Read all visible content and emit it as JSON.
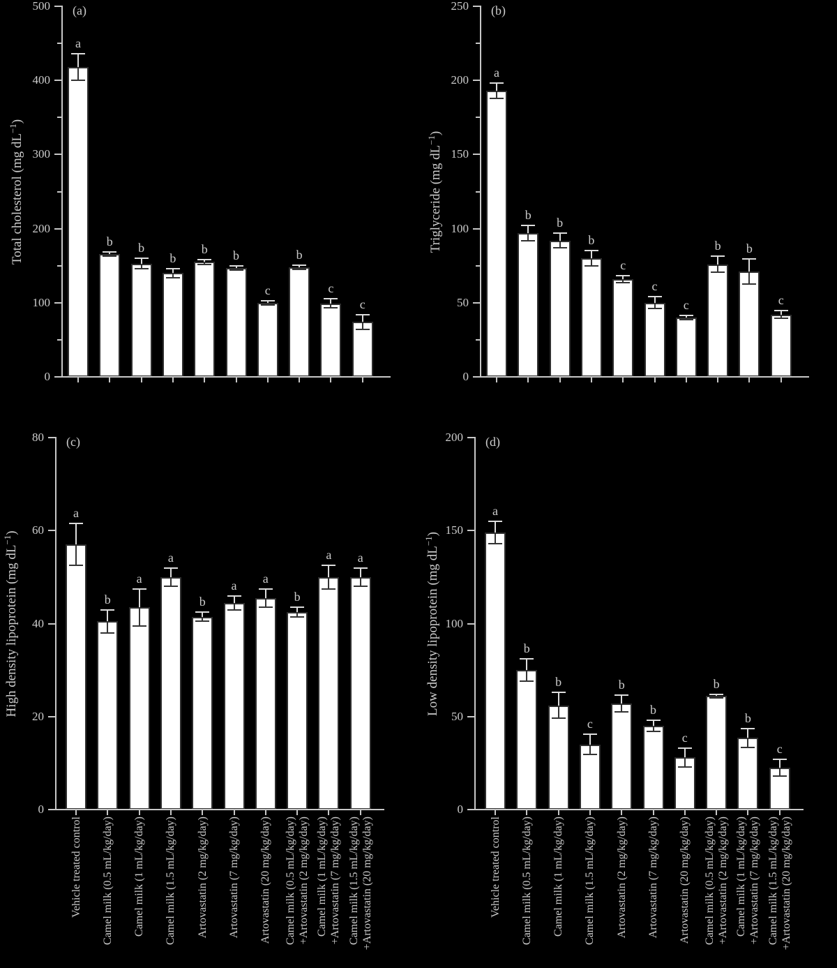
{
  "figure": {
    "background": "#000000",
    "axis_color": "#c8c8c8",
    "text_color": "#cccccc",
    "bar_fill": "#ffffff",
    "bar_border": "#2e2e2e",
    "error_bar_light": "#dddddd",
    "error_bar_dark": "#333333"
  },
  "chart_data": {
    "type": "bar",
    "layout": "2x2-panels, shared x categories, error bars with significance letters",
    "legend": "none",
    "grid": "off",
    "categories": [
      [
        "Vehicle treated control"
      ],
      [
        "Camel milk (0.5 mL/kg/day)"
      ],
      [
        "Camel milk (1 mL/kg/day)"
      ],
      [
        "Camel milk (1.5 mL/kg/day)"
      ],
      [
        "Artovastatin (2 mg/kg/day)"
      ],
      [
        "Artovastatin (7 mg/kg/day)"
      ],
      [
        "Artovastatin (20 mg/kg/day)"
      ],
      [
        "Camel milk (0.5 mL/kg/day)",
        "+Artovastatin (2 mg/kg/day)"
      ],
      [
        "Camel milk (1 mL/kg/day)",
        "+Artovastatin (7 mg/kg/day)"
      ],
      [
        "Camel milk (1.5 mL/kg/day)",
        "+Artovastatin (20 mg/kg/day)"
      ]
    ],
    "panels": [
      {
        "panel": "(a)",
        "ylabel_prefix": "Total cholesterol (mg dL",
        "ylabel_sup": "−1",
        "ylabel_suffix": ")",
        "ylim": [
          0,
          500
        ],
        "ytick_step": 100,
        "minor_ticks": true,
        "yticks": [
          0,
          100,
          200,
          300,
          400,
          500
        ],
        "values": [
          418,
          166,
          153,
          140,
          155,
          147,
          100,
          148,
          99,
          74
        ],
        "errors": [
          18,
          3,
          7,
          6,
          3,
          3,
          3,
          3,
          6,
          10
        ],
        "sig_letters": [
          "a",
          "b",
          "b",
          "b",
          "b",
          "b",
          "c",
          "b",
          "c",
          "c"
        ]
      },
      {
        "panel": "(b)",
        "ylabel_prefix": "Triglyceride (mg dL",
        "ylabel_sup": "−1",
        "ylabel_suffix": ")",
        "ylim": [
          0,
          250
        ],
        "ytick_step": 50,
        "minor_ticks": true,
        "yticks": [
          0,
          50,
          100,
          150,
          200,
          250
        ],
        "values": [
          193,
          97,
          92,
          80,
          66,
          50,
          40,
          76,
          71,
          42
        ],
        "errors": [
          5,
          5,
          5,
          5,
          2.5,
          4,
          1.5,
          5.5,
          8.5,
          2.5
        ],
        "sig_letters": [
          "a",
          "b",
          "b",
          "b",
          "c",
          "c",
          "c",
          "b",
          "b",
          "c"
        ]
      },
      {
        "panel": "(c)",
        "ylabel_prefix": "High density lipoprotein (mg dL",
        "ylabel_sup": "−1",
        "ylabel_suffix": ")",
        "ylim": [
          0,
          80
        ],
        "ytick_step": 20,
        "minor_ticks": false,
        "yticks": [
          0,
          20,
          40,
          60,
          80
        ],
        "values": [
          57,
          40.5,
          43.5,
          50,
          41.5,
          44.5,
          45.5,
          42.5,
          50,
          50
        ],
        "errors": [
          4.5,
          2.5,
          4,
          2,
          1,
          1.5,
          2,
          1,
          2.5,
          2
        ],
        "sig_letters": [
          "a",
          "b",
          "a",
          "a",
          "b",
          "a",
          "a",
          "b",
          "a",
          "a"
        ]
      },
      {
        "panel": "(d)",
        "ylabel_prefix": "Low density lipoprotein (mg dL",
        "ylabel_sup": "−1",
        "ylabel_suffix": ")",
        "ylim": [
          0,
          200
        ],
        "ytick_step": 50,
        "minor_ticks": false,
        "yticks": [
          0,
          50,
          100,
          150,
          200
        ],
        "values": [
          149,
          75,
          56,
          35,
          57,
          45,
          28,
          61,
          38.5,
          22.5
        ],
        "errors": [
          6,
          6,
          7,
          5.5,
          4.5,
          3,
          5,
          1,
          5,
          4.5
        ],
        "sig_letters": [
          "a",
          "b",
          "b",
          "c",
          "b",
          "b",
          "c",
          "b",
          "b",
          "c"
        ]
      }
    ]
  }
}
